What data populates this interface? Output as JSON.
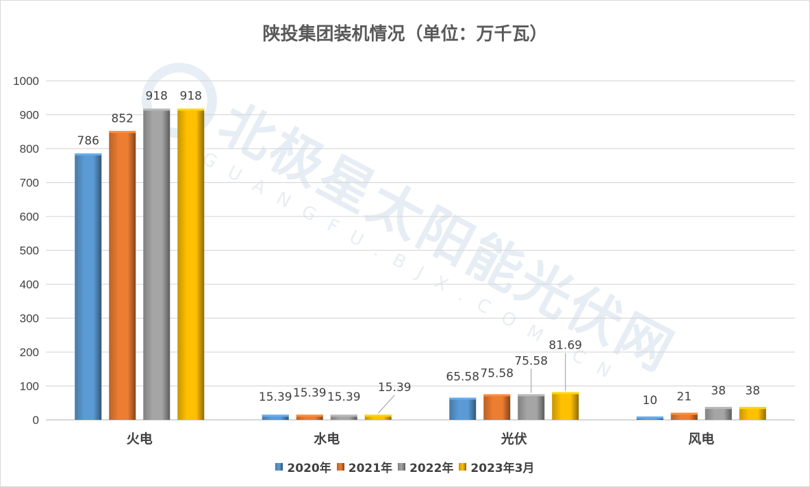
{
  "chart_data": {
    "type": "bar",
    "title": "陕投集团装机情况（单位：万千瓦）",
    "categories": [
      "火电",
      "水电",
      "光伏",
      "风电"
    ],
    "series": [
      {
        "name": "2020年",
        "values": [
          786,
          15.39,
          65.58,
          10
        ],
        "labels": [
          "786",
          "15.39",
          "65.58",
          "10"
        ],
        "color": "#5b9bd5"
      },
      {
        "name": "2021年",
        "values": [
          852,
          15.39,
          75.58,
          21
        ],
        "labels": [
          "852",
          "15.39",
          "75.58",
          "21"
        ],
        "color": "#ed7d31"
      },
      {
        "name": "2022年",
        "values": [
          918,
          15.39,
          75.58,
          38
        ],
        "labels": [
          "918",
          "15.39",
          "75.58",
          "38"
        ],
        "color": "#a5a5a5"
      },
      {
        "name": "2023年3月",
        "values": [
          918,
          15.39,
          81.69,
          38
        ],
        "labels": [
          "918",
          "15.39",
          "81.69",
          "38"
        ],
        "color": "#ffc000"
      }
    ],
    "yticks": [
      "0",
      "100",
      "200",
      "300",
      "400",
      "500",
      "600",
      "700",
      "800",
      "900",
      "1000"
    ],
    "ylim": [
      0,
      1000
    ],
    "grid": true,
    "legend": "bottom",
    "watermark": {
      "text": "北极星太阳能光伏网",
      "subtext": "GUANGFU.BJX.COM.CN"
    }
  }
}
